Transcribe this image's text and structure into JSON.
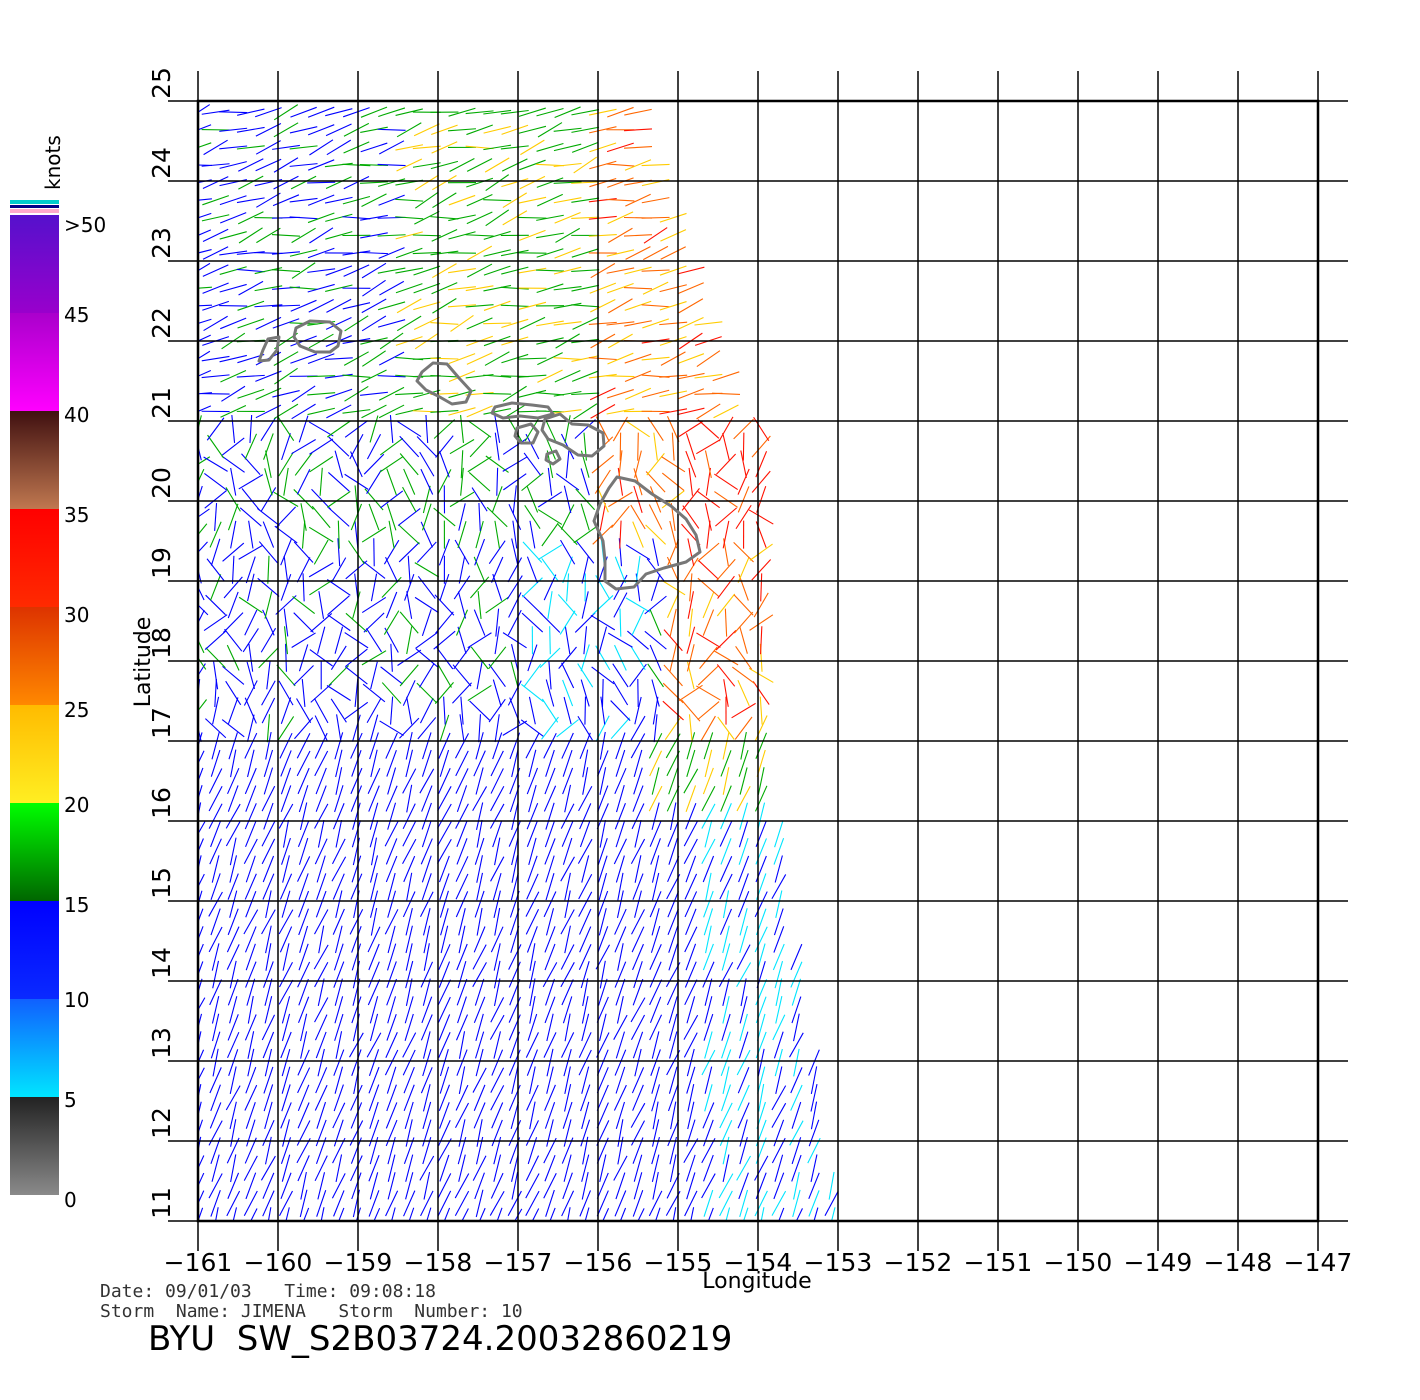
{
  "map": {
    "xlabel": "Longitude",
    "ylabel": "Latitude",
    "lon_range": [
      -161,
      -147
    ],
    "lat_range": [
      11,
      25
    ],
    "lon_ticks": [
      "-161",
      "-160",
      "-159",
      "-158",
      "-157",
      "-156",
      "-155",
      "-154",
      "-153",
      "-152",
      "-151",
      "-150",
      "-149",
      "-148",
      "-147"
    ],
    "lat_ticks": [
      "11",
      "12",
      "13",
      "14",
      "15",
      "16",
      "17",
      "18",
      "19",
      "20",
      "21",
      "22",
      "23",
      "24",
      "25"
    ],
    "grid": true,
    "swath": "wind barbs covering the western half of the map, from -161 to about -153 longitude",
    "islands": [
      "Kauai",
      "Niihau",
      "Oahu",
      "Molokai",
      "Maui",
      "Lanai",
      "Kahoolawe",
      "Hawaii"
    ]
  },
  "legend": {
    "unit_label": "knots",
    "levels": [
      "0",
      "5",
      "10",
      "15",
      "20",
      "25",
      "30",
      "35",
      "40",
      "45",
      ">50"
    ],
    "colors": {
      "0-5": "#666666",
      "5-10": "#00e5ff",
      "10-15": "#0000ff",
      "15-20": "#00aa00",
      "20-25": "#ffcc00",
      "25-30": "#ff6600",
      "30-35": "#ff1100",
      "35-40": "#8a4a2a",
      "40-45": "#ff00ff",
      "45-50": "#6611cc"
    }
  },
  "info": {
    "date_line": "Date: 09/01/03   Time: 09:08:18",
    "storm_line": "Storm  Name: JIMENA   Storm  Number: 10",
    "product_title": "BYU  SW_S2B03724.20032860219"
  }
}
